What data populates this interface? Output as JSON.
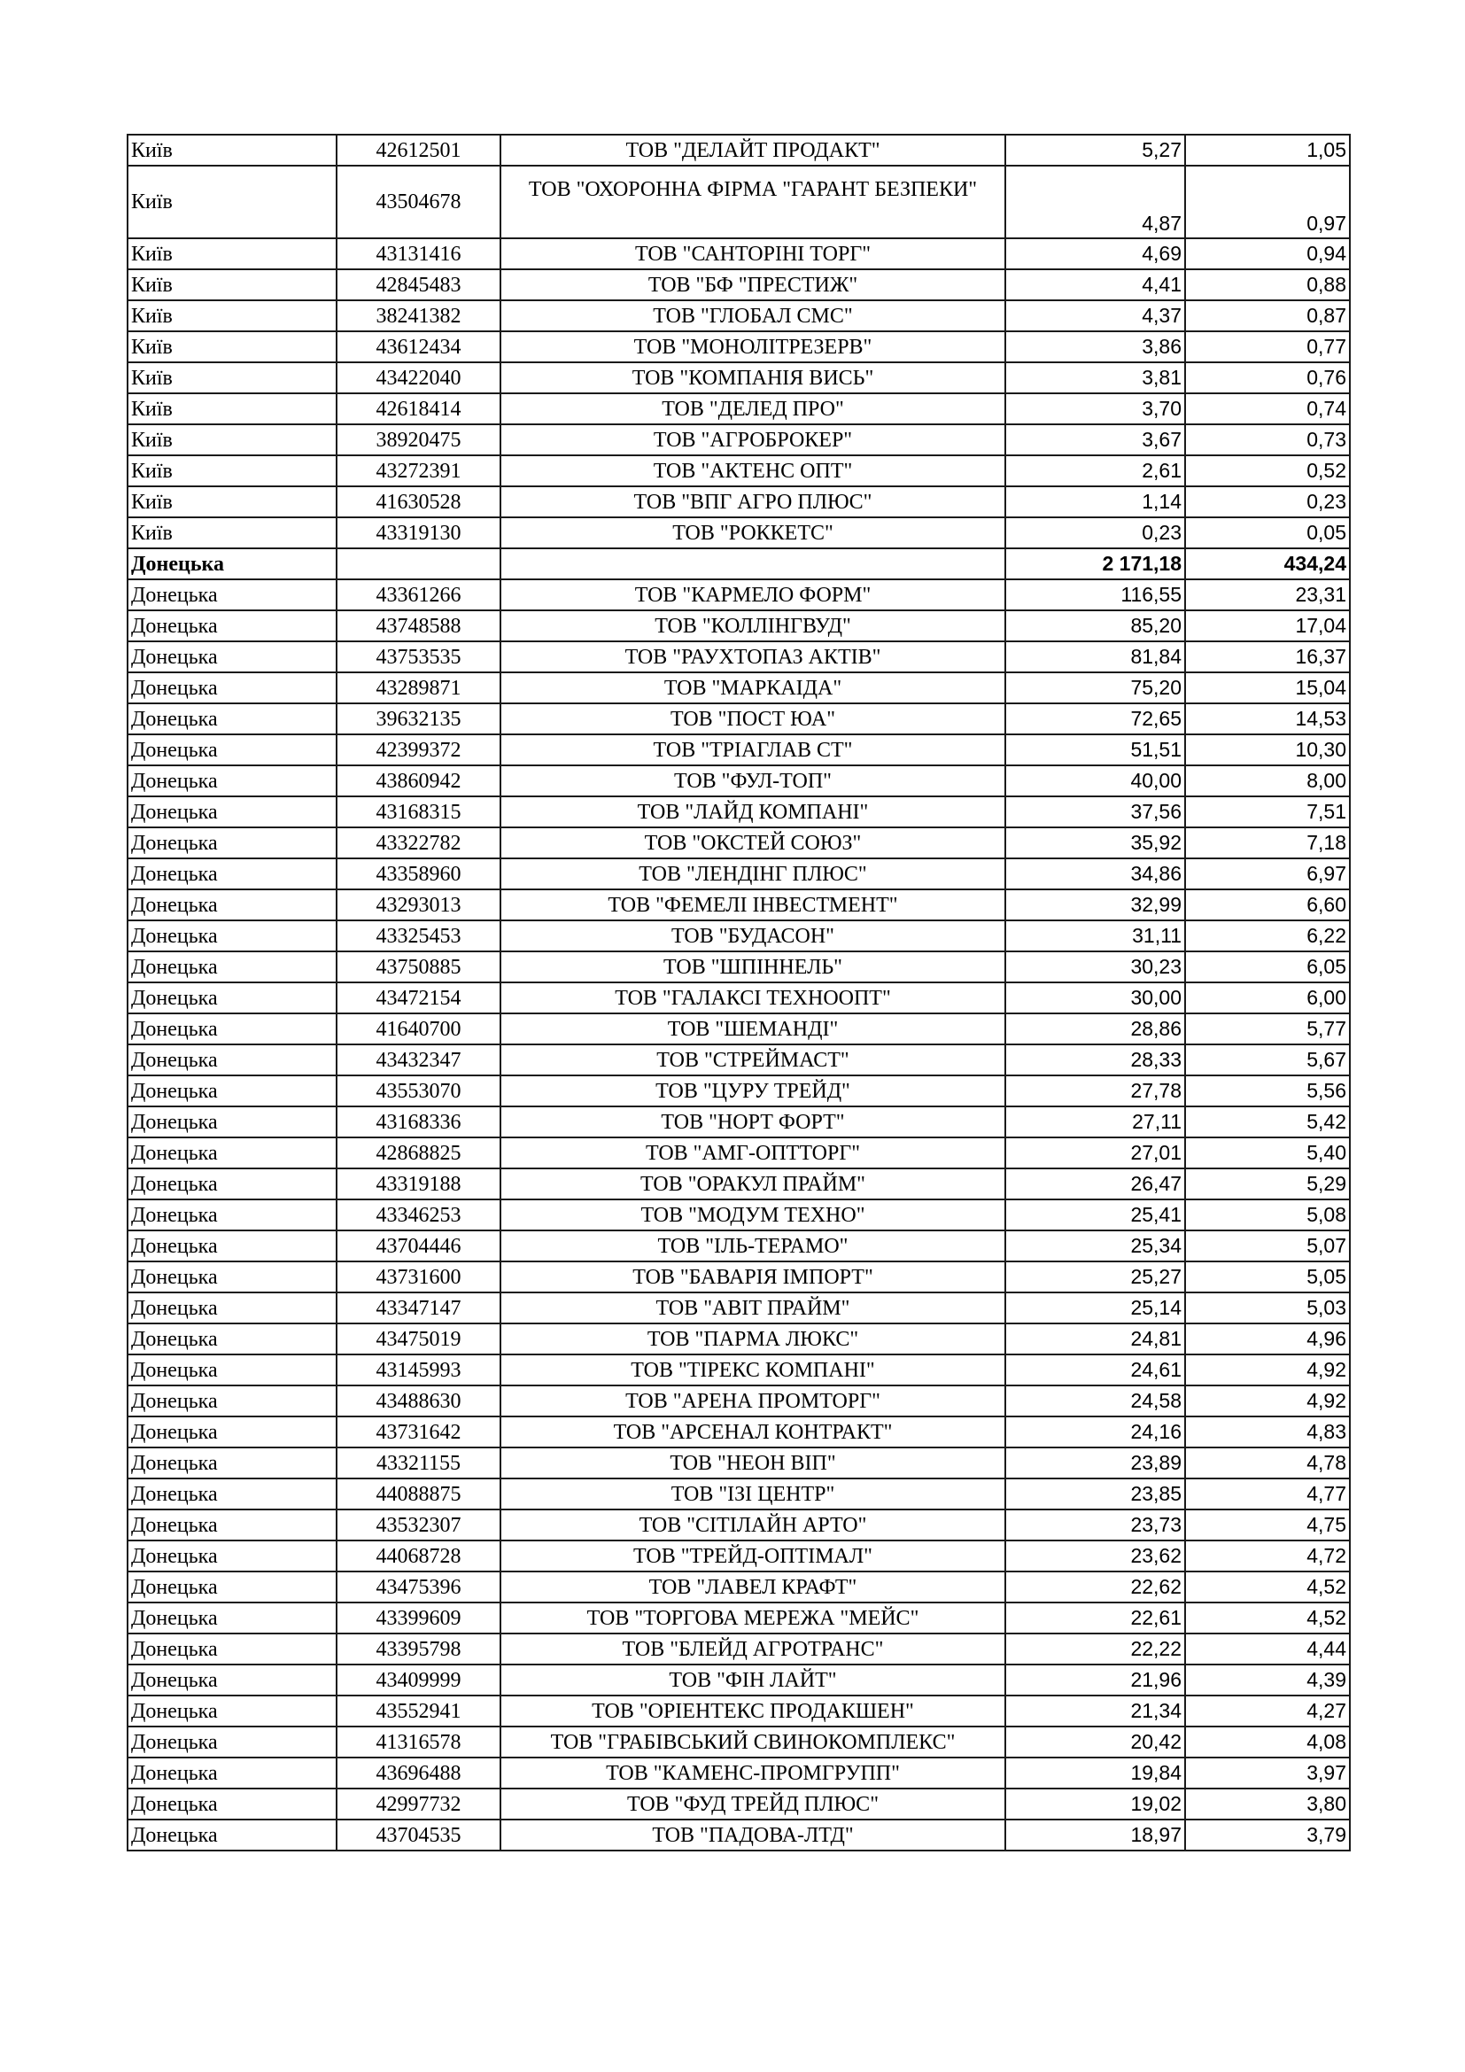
{
  "table": {
    "rows": [
      {
        "region": "Київ",
        "code": "42612501",
        "name": "ТОВ \"ДЕЛАЙТ ПРОДАКТ\"",
        "v1": "5,27",
        "v2": "1,05"
      },
      {
        "region": "Київ",
        "code": "43504678",
        "name": "ТОВ \"ОХОРОННА ФІРМА \"ГАРАНТ БЕЗПЕКИ\"",
        "v1": "4,87",
        "v2": "0,97",
        "tall": true
      },
      {
        "region": "Київ",
        "code": "43131416",
        "name": "ТОВ \"САНТОРІНІ ТОРГ\"",
        "v1": "4,69",
        "v2": "0,94"
      },
      {
        "region": "Київ",
        "code": "42845483",
        "name": "ТОВ \"БФ \"ПРЕСТИЖ\"",
        "v1": "4,41",
        "v2": "0,88"
      },
      {
        "region": "Київ",
        "code": "38241382",
        "name": "ТОВ \"ГЛОБАЛ СМС\"",
        "v1": "4,37",
        "v2": "0,87"
      },
      {
        "region": "Київ",
        "code": "43612434",
        "name": "ТОВ \"МОНОЛІТРЕЗЕРВ\"",
        "v1": "3,86",
        "v2": "0,77"
      },
      {
        "region": "Київ",
        "code": "43422040",
        "name": "ТОВ \"КОМПАНІЯ ВИСЬ\"",
        "v1": "3,81",
        "v2": "0,76"
      },
      {
        "region": "Київ",
        "code": "42618414",
        "name": "ТОВ \"ДЕЛЕД ПРО\"",
        "v1": "3,70",
        "v2": "0,74"
      },
      {
        "region": "Київ",
        "code": "38920475",
        "name": "ТОВ \"АГРОБРОКЕР\"",
        "v1": "3,67",
        "v2": "0,73"
      },
      {
        "region": "Київ",
        "code": "43272391",
        "name": "ТОВ \"АКТЕНС ОПТ\"",
        "v1": "2,61",
        "v2": "0,52"
      },
      {
        "region": "Київ",
        "code": "41630528",
        "name": "ТОВ \"ВПГ АГРО ПЛЮС\"",
        "v1": "1,14",
        "v2": "0,23"
      },
      {
        "region": "Київ",
        "code": "43319130",
        "name": "ТОВ \"РОККЕТС\"",
        "v1": "0,23",
        "v2": "0,05"
      },
      {
        "region": "Донецька",
        "code": "",
        "name": "",
        "v1": "2 171,18",
        "v2": "434,24",
        "subtotal": true
      },
      {
        "region": "Донецька",
        "code": "43361266",
        "name": "ТОВ \"КАРМЕЛО ФОРМ\"",
        "v1": "116,55",
        "v2": "23,31"
      },
      {
        "region": "Донецька",
        "code": "43748588",
        "name": "ТОВ \"КОЛЛІНГВУД\"",
        "v1": "85,20",
        "v2": "17,04"
      },
      {
        "region": "Донецька",
        "code": "43753535",
        "name": "ТОВ \"РАУХТОПАЗ АКТІВ\"",
        "v1": "81,84",
        "v2": "16,37"
      },
      {
        "region": "Донецька",
        "code": "43289871",
        "name": "ТОВ \"МАРКАІДА\"",
        "v1": "75,20",
        "v2": "15,04"
      },
      {
        "region": "Донецька",
        "code": "39632135",
        "name": "ТОВ \"ПОСТ ЮА\"",
        "v1": "72,65",
        "v2": "14,53"
      },
      {
        "region": "Донецька",
        "code": "42399372",
        "name": "ТОВ \"ТРІАГЛАВ СТ\"",
        "v1": "51,51",
        "v2": "10,30"
      },
      {
        "region": "Донецька",
        "code": "43860942",
        "name": "ТОВ \"ФУЛ-ТОП\"",
        "v1": "40,00",
        "v2": "8,00"
      },
      {
        "region": "Донецька",
        "code": "43168315",
        "name": "ТОВ \"ЛАЙД КОМПАНІ\"",
        "v1": "37,56",
        "v2": "7,51"
      },
      {
        "region": "Донецька",
        "code": "43322782",
        "name": "ТОВ \"ОКСТЕЙ СОЮЗ\"",
        "v1": "35,92",
        "v2": "7,18"
      },
      {
        "region": "Донецька",
        "code": "43358960",
        "name": "ТОВ \"ЛЕНДІНГ ПЛЮС\"",
        "v1": "34,86",
        "v2": "6,97"
      },
      {
        "region": "Донецька",
        "code": "43293013",
        "name": "ТОВ \"ФЕМЕЛІ ІНВЕСТМЕНТ\"",
        "v1": "32,99",
        "v2": "6,60"
      },
      {
        "region": "Донецька",
        "code": "43325453",
        "name": "ТОВ \"БУДАСОН\"",
        "v1": "31,11",
        "v2": "6,22"
      },
      {
        "region": "Донецька",
        "code": "43750885",
        "name": "ТОВ \"ШПІННЕЛЬ\"",
        "v1": "30,23",
        "v2": "6,05"
      },
      {
        "region": "Донецька",
        "code": "43472154",
        "name": "ТОВ \"ГАЛАКСІ ТЕХНООПТ\"",
        "v1": "30,00",
        "v2": "6,00"
      },
      {
        "region": "Донецька",
        "code": "41640700",
        "name": "ТОВ \"ШЕМАНДІ\"",
        "v1": "28,86",
        "v2": "5,77"
      },
      {
        "region": "Донецька",
        "code": "43432347",
        "name": "ТОВ \"СТРЕЙМАСТ\"",
        "v1": "28,33",
        "v2": "5,67"
      },
      {
        "region": "Донецька",
        "code": "43553070",
        "name": "ТОВ \"ЦУРУ ТРЕЙД\"",
        "v1": "27,78",
        "v2": "5,56"
      },
      {
        "region": "Донецька",
        "code": "43168336",
        "name": "ТОВ \"НОРТ ФОРТ\"",
        "v1": "27,11",
        "v2": "5,42"
      },
      {
        "region": "Донецька",
        "code": "42868825",
        "name": "ТОВ \"АМГ-ОПТТОРГ\"",
        "v1": "27,01",
        "v2": "5,40"
      },
      {
        "region": "Донецька",
        "code": "43319188",
        "name": "ТОВ \"ОРАКУЛ ПРАЙМ\"",
        "v1": "26,47",
        "v2": "5,29"
      },
      {
        "region": "Донецька",
        "code": "43346253",
        "name": "ТОВ \"МОДУМ ТЕХНО\"",
        "v1": "25,41",
        "v2": "5,08"
      },
      {
        "region": "Донецька",
        "code": "43704446",
        "name": "ТОВ \"ІЛЬ-ТЕРАМО\"",
        "v1": "25,34",
        "v2": "5,07"
      },
      {
        "region": "Донецька",
        "code": "43731600",
        "name": "ТОВ \"БАВАРІЯ ІМПОРТ\"",
        "v1": "25,27",
        "v2": "5,05"
      },
      {
        "region": "Донецька",
        "code": "43347147",
        "name": "ТОВ \"АВІТ ПРАЙМ\"",
        "v1": "25,14",
        "v2": "5,03"
      },
      {
        "region": "Донецька",
        "code": "43475019",
        "name": "ТОВ \"ПАРМА ЛЮКС\"",
        "v1": "24,81",
        "v2": "4,96"
      },
      {
        "region": "Донецька",
        "code": "43145993",
        "name": "ТОВ \"ТІРЕКС КОМПАНІ\"",
        "v1": "24,61",
        "v2": "4,92"
      },
      {
        "region": "Донецька",
        "code": "43488630",
        "name": "ТОВ \"АРЕНА ПРОМТОРГ\"",
        "v1": "24,58",
        "v2": "4,92"
      },
      {
        "region": "Донецька",
        "code": "43731642",
        "name": "ТОВ \"АРСЕНАЛ КОНТРАКТ\"",
        "v1": "24,16",
        "v2": "4,83"
      },
      {
        "region": "Донецька",
        "code": "43321155",
        "name": "ТОВ \"НЕОН ВІП\"",
        "v1": "23,89",
        "v2": "4,78"
      },
      {
        "region": "Донецька",
        "code": "44088875",
        "name": "ТОВ \"ІЗІ ЦЕНТР\"",
        "v1": "23,85",
        "v2": "4,77"
      },
      {
        "region": "Донецька",
        "code": "43532307",
        "name": "ТОВ \"СІТІЛАЙН АРТО\"",
        "v1": "23,73",
        "v2": "4,75"
      },
      {
        "region": "Донецька",
        "code": "44068728",
        "name": "ТОВ \"ТРЕЙД-ОПТІМАЛ\"",
        "v1": "23,62",
        "v2": "4,72"
      },
      {
        "region": "Донецька",
        "code": "43475396",
        "name": "ТОВ \"ЛАВЕЛ КРАФТ\"",
        "v1": "22,62",
        "v2": "4,52"
      },
      {
        "region": "Донецька",
        "code": "43399609",
        "name": "ТОВ \"ТОРГОВА МЕРЕЖА \"МЕЙС\"",
        "v1": "22,61",
        "v2": "4,52"
      },
      {
        "region": "Донецька",
        "code": "43395798",
        "name": "ТОВ \"БЛЕЙД АГРОТРАНС\"",
        "v1": "22,22",
        "v2": "4,44"
      },
      {
        "region": "Донецька",
        "code": "43409999",
        "name": "ТОВ \"ФІН ЛАЙТ\"",
        "v1": "21,96",
        "v2": "4,39"
      },
      {
        "region": "Донецька",
        "code": "43552941",
        "name": "ТОВ \"ОРІЕНТЕКС ПРОДАКШЕН\"",
        "v1": "21,34",
        "v2": "4,27"
      },
      {
        "region": "Донецька",
        "code": "41316578",
        "name": "ТОВ \"ГРАБІВСЬКИЙ СВИНОКОМПЛЕКС\"",
        "v1": "20,42",
        "v2": "4,08"
      },
      {
        "region": "Донецька",
        "code": "43696488",
        "name": "ТОВ \"КАМЕНС-ПРОМГРУПП\"",
        "v1": "19,84",
        "v2": "3,97"
      },
      {
        "region": "Донецька",
        "code": "42997732",
        "name": "ТОВ \"ФУД ТРЕЙД ПЛЮС\"",
        "v1": "19,02",
        "v2": "3,80"
      },
      {
        "region": "Донецька",
        "code": "43704535",
        "name": "ТОВ \"ПАДОВА-ЛТД\"",
        "v1": "18,97",
        "v2": "3,79"
      }
    ]
  }
}
